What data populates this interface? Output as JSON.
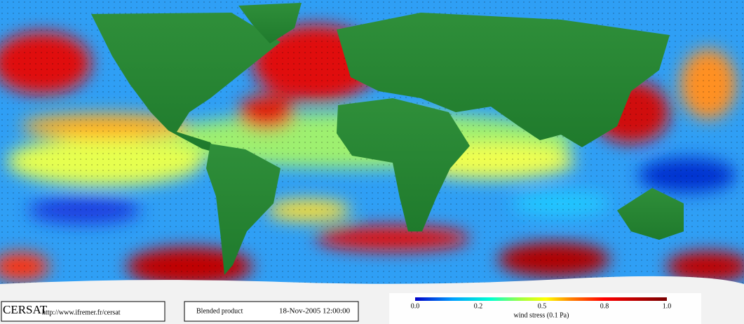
{
  "logo": {
    "name": "CERSAT",
    "url": "http://www.ifremer.fr/cersat"
  },
  "product": "Blended product",
  "date": "18-Nov-2005 12:00:00",
  "colorbar": {
    "ticks": [
      "0.0",
      "0.2",
      "0.5",
      "0.8",
      "1.0"
    ],
    "label": "wind stress (0.1 Pa)"
  }
}
